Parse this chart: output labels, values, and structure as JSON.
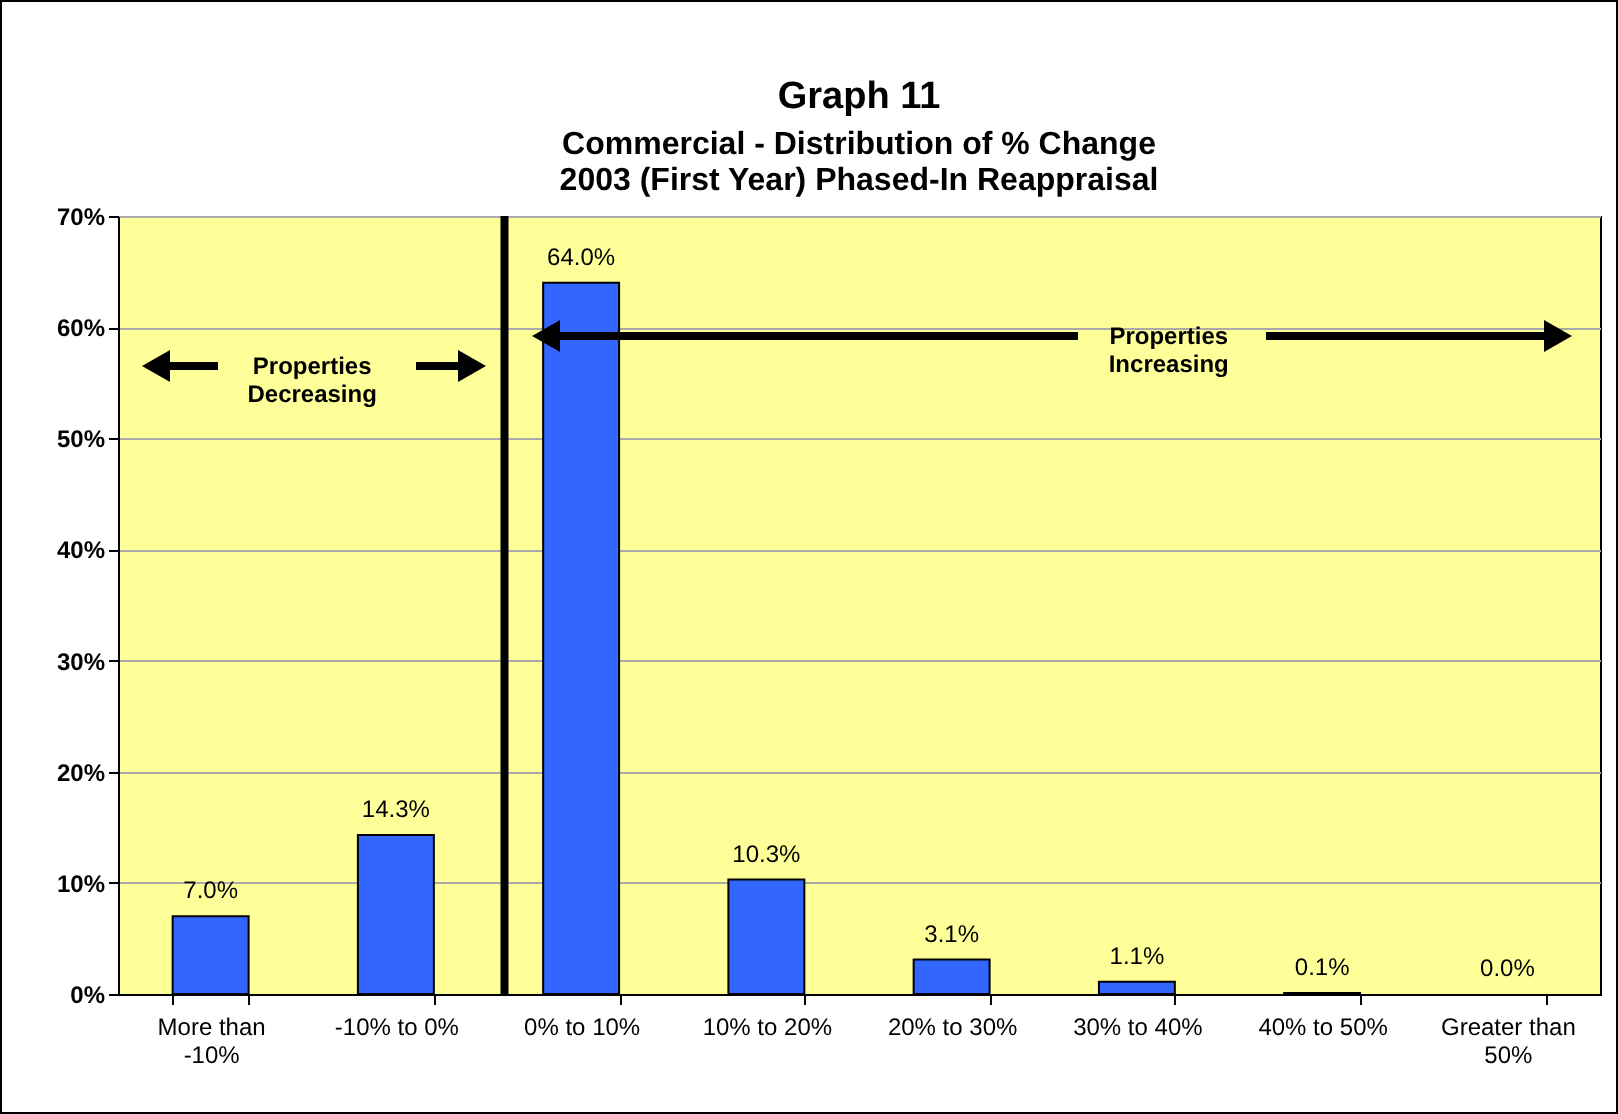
{
  "chart_data": {
    "type": "bar",
    "title": "Graph 11",
    "subtitle": "Commercial - Distribution of % Change\n2003 (First Year) Phased-In Reappraisal",
    "categories": [
      "More than -10%",
      "-10% to 0%",
      "0% to 10%",
      "10% to 20%",
      "20% to 30%",
      "30% to 40%",
      "40% to 50%",
      "Greater than 50%"
    ],
    "values": [
      7.0,
      14.3,
      64.0,
      10.3,
      3.1,
      1.1,
      0.1,
      0.0
    ],
    "value_labels": [
      "7.0%",
      "14.3%",
      "64.0%",
      "10.3%",
      "3.1%",
      "1.1%",
      "0.1%",
      "0.0%"
    ],
    "color": "#3366ff",
    "ylim": [
      0,
      70
    ],
    "yticks": [
      {
        "value": 0,
        "label": "0%"
      },
      {
        "value": 10,
        "label": "10%"
      },
      {
        "value": 20,
        "label": "20%"
      },
      {
        "value": 30,
        "label": "30%"
      },
      {
        "value": 40,
        "label": "40%"
      },
      {
        "value": 50,
        "label": "50%"
      },
      {
        "value": 60,
        "label": "60%"
      },
      {
        "value": 70,
        "label": "70%"
      }
    ],
    "grid": "y",
    "ref_lines": [
      {
        "axis": "x",
        "value": "0% to 10%",
        "color": "#000000"
      }
    ],
    "annotations": [
      "Properties Decreasing",
      "Properties Increasing"
    ]
  }
}
